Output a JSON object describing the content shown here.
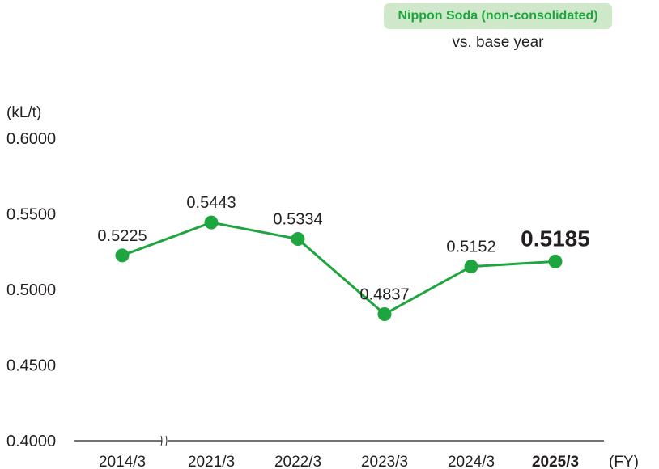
{
  "legend": {
    "series_label": "Nippon Soda (non-consolidated)",
    "note": "vs. base year"
  },
  "colors": {
    "line": "#1fa540",
    "badge_bg": "#cfe8c9",
    "axis": "#231f20"
  },
  "chart_data": {
    "type": "line",
    "title": "",
    "ylabel": "(kL/t)",
    "xlabel": "(FY)",
    "ylim": [
      0.4,
      0.6
    ],
    "yticks": [
      "0.4000",
      "0.4500",
      "0.5000",
      "0.5500",
      "0.6000"
    ],
    "categories": [
      "2014/3",
      "2021/3",
      "2022/3",
      "2023/3",
      "2024/3",
      "2025/3"
    ],
    "series": [
      {
        "name": "Nippon Soda (non-consolidated)",
        "values": [
          0.5225,
          0.5443,
          0.5334,
          0.4837,
          0.5152,
          0.5185
        ],
        "labels": [
          "0.5225",
          "0.5443",
          "0.5334",
          "0.4837",
          "0.5152",
          "0.5185"
        ]
      }
    ],
    "highlight_category": "2025/3",
    "axis_break_after": "2014/3"
  }
}
